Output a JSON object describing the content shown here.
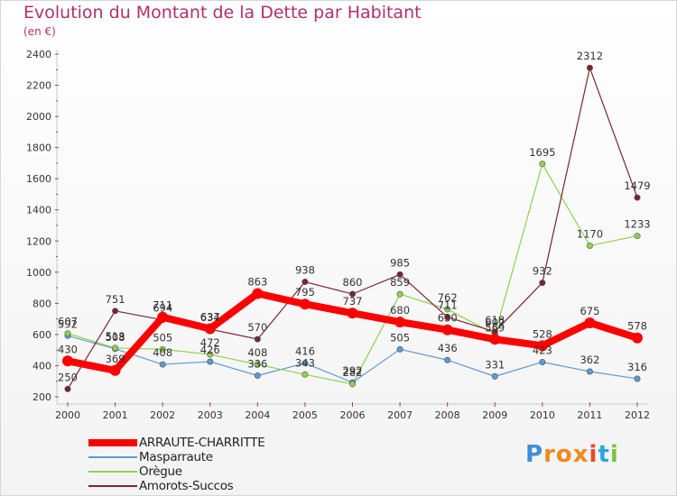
{
  "title": "Evolution du Montant de la Dette par Habitant",
  "subtitle": "(en €)",
  "logo": {
    "letters": [
      "P",
      "r",
      "o",
      "x",
      "i",
      "t",
      "i"
    ],
    "colors": [
      "#3b8fd8",
      "#f08a1c",
      "#f08a1c",
      "#f08a1c",
      "#e54b2c",
      "#2ba7de",
      "#7cc242"
    ]
  },
  "chart_data": {
    "type": "line",
    "title": "Evolution du Montant de la Dette par Habitant",
    "subtitle": "(en €)",
    "xlabel": "",
    "ylabel": "",
    "x": [
      "2000",
      "2001",
      "2002",
      "2003",
      "2004",
      "2005",
      "2006",
      "2007",
      "2008",
      "2009",
      "2010",
      "2011",
      "2012"
    ],
    "ylim": [
      200,
      2400
    ],
    "yticks": [
      200,
      400,
      600,
      800,
      1000,
      1200,
      1400,
      1600,
      1800,
      2000,
      2200,
      2400
    ],
    "grid": false,
    "legend_position": "bottom-left",
    "series": [
      {
        "name": "ARRAUTE-CHARRITTE",
        "color": "#ff0000",
        "values": [
          430,
          369,
          711,
          637,
          863,
          795,
          737,
          680,
          630,
          569,
          528,
          675,
          578
        ],
        "labels": [
          "430",
          "369",
          "711",
          "637",
          "863",
          "795",
          "737",
          "680",
          "630",
          "569",
          "528",
          "675",
          "578"
        ]
      },
      {
        "name": "Masparraute",
        "color": "#5b9bd5",
        "values": [
          592,
          508,
          408,
          426,
          336,
          416,
          292,
          505,
          436,
          331,
          423,
          362,
          316
        ],
        "labels": [
          "592",
          "508",
          "408",
          "426",
          "336",
          "416",
          "292",
          "505",
          "436",
          "331",
          "423",
          "362",
          "316"
        ]
      },
      {
        "name": "Orègue",
        "color": "#8fd14f",
        "values": [
          607,
          513,
          505,
          472,
          408,
          343,
          282,
          859,
          762,
          602,
          1695,
          1170,
          1233
        ],
        "labels": [
          "607",
          "513",
          "505",
          "472",
          "408",
          "343",
          "282",
          "859",
          "762",
          "602",
          "1695",
          "1170",
          "1233"
        ]
      },
      {
        "name": "Amorots-Succos",
        "color": "#7a2430",
        "values": [
          250,
          751,
          694,
          634,
          570,
          938,
          860,
          985,
          711,
          618,
          932,
          2312,
          1479
        ],
        "labels": [
          "250",
          "751",
          "694",
          "634",
          "570",
          "938",
          "860",
          "985",
          "711",
          "618",
          "932",
          "2312",
          "1479"
        ]
      }
    ]
  }
}
